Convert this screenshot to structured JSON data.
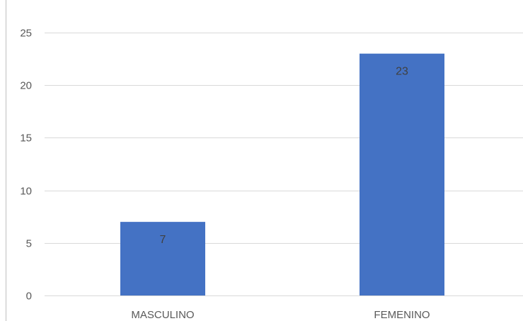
{
  "chart_data": {
    "type": "bar",
    "title": "",
    "xlabel": "",
    "ylabel": "",
    "categories": [
      "MASCULINO",
      "FEMENINO"
    ],
    "values": [
      7,
      23
    ],
    "ylim": [
      0,
      25
    ],
    "yticks": [
      0,
      5,
      10,
      15,
      20,
      25
    ],
    "grid": true,
    "legend": "none",
    "data_labels": true,
    "colors": {
      "bar": "#4472C4",
      "grid": "#D9D9D9",
      "axis_text": "#595959",
      "data_label": "#404040",
      "left_edge": "#BFBFBF"
    }
  }
}
